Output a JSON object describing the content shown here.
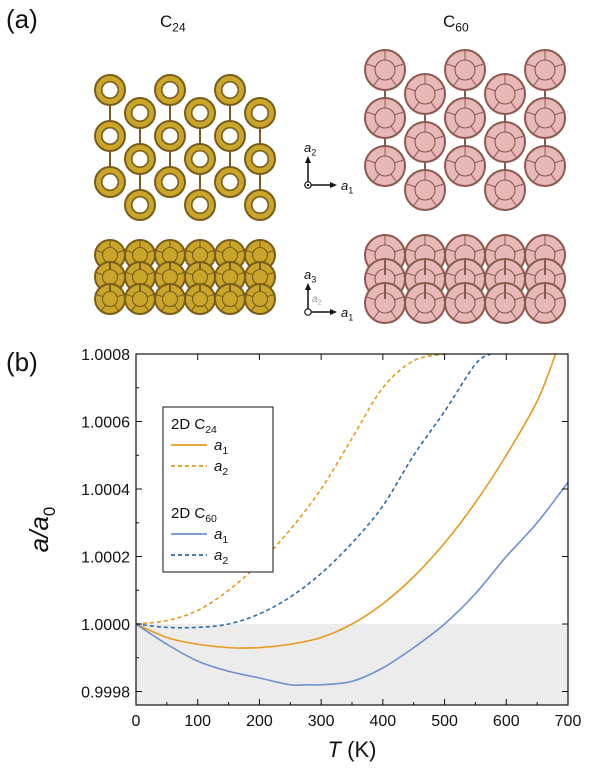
{
  "panel_a": {
    "label": "(a)",
    "materials": [
      {
        "name": "C",
        "subscript": "24",
        "color": "#c9a629",
        "edge": "#7a5c1a"
      },
      {
        "name": "C",
        "subscript": "60",
        "color": "#e8b8b8",
        "edge": "#8b5a4f"
      }
    ],
    "axes_top": {
      "up": "a",
      "up_sub": "2",
      "right": "a",
      "right_sub": "1"
    },
    "axes_bottom": {
      "up": "a",
      "up_sub": "3",
      "back": "a",
      "back_sub": "2",
      "right": "a",
      "right_sub": "1"
    }
  },
  "chart_data": {
    "type": "line",
    "panel_label": "(b)",
    "xlabel_var": "T",
    "xlabel_unit": "(K)",
    "ylabel": "a/a",
    "ylabel_sub": "0",
    "xlim": [
      0,
      700
    ],
    "ylim": [
      0.99976,
      1.0008
    ],
    "xticks": [
      0,
      100,
      200,
      300,
      400,
      500,
      600,
      700
    ],
    "yticks": [
      0.9998,
      1.0,
      1.0002,
      1.0004,
      1.0006,
      1.0008
    ],
    "ytick_labels": [
      "0.9998",
      "1.0000",
      "1.0002",
      "1.0004",
      "1.0006",
      "1.0008"
    ],
    "shaded_below": 1.0,
    "legend_placement": "top-left",
    "groups": [
      {
        "title": "2D C",
        "title_sub": "24"
      },
      {
        "title": "2D C",
        "title_sub": "60"
      }
    ],
    "series": [
      {
        "name": "a",
        "name_sub": "1",
        "group": 0,
        "color": "#e8991c",
        "dashed": false,
        "x": [
          0,
          50,
          100,
          150,
          200,
          250,
          300,
          350,
          400,
          450,
          500,
          550,
          600,
          650,
          680
        ],
        "y": [
          1.0,
          0.99996,
          0.99994,
          0.99993,
          0.99993,
          0.99994,
          0.99996,
          1.0,
          1.00006,
          1.00014,
          1.00024,
          1.00036,
          1.0005,
          1.00066,
          1.0008
        ]
      },
      {
        "name": "a",
        "name_sub": "2",
        "group": 0,
        "color": "#e8991c",
        "dashed": true,
        "x": [
          0,
          50,
          100,
          150,
          200,
          250,
          300,
          350,
          400,
          450,
          500
        ],
        "y": [
          1.0,
          1.00001,
          1.00004,
          1.0001,
          1.00018,
          1.00028,
          1.0004,
          1.00055,
          1.0007,
          1.00078,
          1.0008
        ]
      },
      {
        "name": "a",
        "name_sub": "1",
        "group": 1,
        "color": "#6b8fcf",
        "dashed": false,
        "x": [
          0,
          50,
          100,
          150,
          200,
          250,
          280,
          300,
          350,
          400,
          450,
          500,
          550,
          600,
          650,
          700
        ],
        "y": [
          1.0,
          0.99994,
          0.99989,
          0.99986,
          0.99984,
          0.99982,
          0.99982,
          0.99982,
          0.99983,
          0.99987,
          0.99993,
          1.0,
          1.00009,
          1.0002,
          1.0003,
          1.00042
        ]
      },
      {
        "name": "a",
        "name_sub": "2",
        "group": 1,
        "color": "#2e6ca4",
        "dashed": true,
        "x": [
          0,
          50,
          100,
          150,
          200,
          250,
          300,
          350,
          400,
          450,
          500,
          550,
          575
        ],
        "y": [
          1.0,
          0.99999,
          0.99999,
          1.0,
          1.00003,
          1.00008,
          1.00015,
          1.00024,
          1.00035,
          1.0005,
          1.00063,
          1.00077,
          1.0008
        ]
      }
    ]
  }
}
